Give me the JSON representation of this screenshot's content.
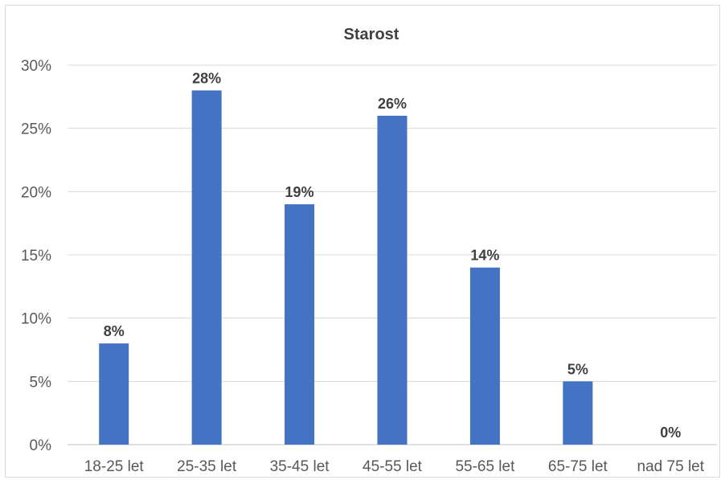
{
  "chart_data": {
    "type": "bar",
    "title": "Starost",
    "xlabel": "",
    "ylabel": "",
    "categories": [
      "18-25 let",
      "25-35 let",
      "35-45 let",
      "45-55 let",
      "55-65 let",
      "65-75 let",
      "nad 75 let"
    ],
    "values": [
      8,
      28,
      19,
      26,
      14,
      5,
      0
    ],
    "data_labels": [
      "8%",
      "28%",
      "19%",
      "26%",
      "14%",
      "5%",
      "0%"
    ],
    "ylim": [
      0,
      30
    ],
    "y_ticks": [
      0,
      5,
      10,
      15,
      20,
      25,
      30
    ],
    "y_tick_labels": [
      "0%",
      "5%",
      "10%",
      "15%",
      "20%",
      "25%",
      "30%"
    ],
    "grid": true,
    "legend": "none",
    "bar_color": "#4472c4"
  }
}
